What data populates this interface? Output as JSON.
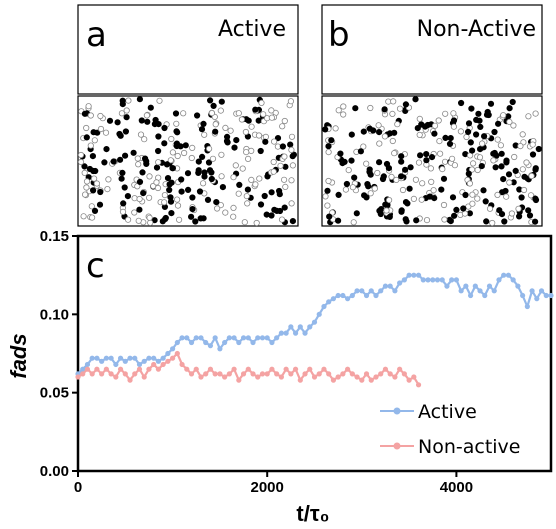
{
  "panels": {
    "a": {
      "letter": "a",
      "title": "Active"
    },
    "b": {
      "letter": "b",
      "title": "Non-Active"
    }
  },
  "chart_data": {
    "type": "line",
    "panel_letter": "c",
    "xlabel": "t/τ₀",
    "ylabel": "fads",
    "xlim": [
      0,
      5000
    ],
    "ylim": [
      0,
      0.15
    ],
    "x_ticks": [
      0,
      2000,
      4000
    ],
    "y_ticks": [
      0.0,
      0.05,
      0.1,
      0.15
    ],
    "x_tick_labels": [
      "0",
      "2000",
      "4000"
    ],
    "y_tick_labels": [
      "0.00",
      "0.05",
      "0.10",
      "0.15"
    ],
    "grid": false,
    "legend": "bottom-right",
    "series": [
      {
        "name": "Active",
        "color": "#93b8ea",
        "x": [
          0,
          50,
          100,
          150,
          200,
          250,
          300,
          350,
          400,
          450,
          500,
          550,
          600,
          650,
          700,
          750,
          800,
          850,
          900,
          950,
          1000,
          1050,
          1100,
          1150,
          1200,
          1250,
          1300,
          1350,
          1400,
          1450,
          1500,
          1550,
          1600,
          1650,
          1700,
          1750,
          1800,
          1850,
          1900,
          1950,
          2000,
          2050,
          2100,
          2150,
          2200,
          2250,
          2300,
          2350,
          2400,
          2450,
          2500,
          2550,
          2600,
          2650,
          2700,
          2750,
          2800,
          2850,
          2900,
          2950,
          3000,
          3050,
          3100,
          3150,
          3200,
          3250,
          3300,
          3350,
          3400,
          3450,
          3500,
          3550,
          3600,
          3650,
          3700,
          3750,
          3800,
          3850,
          3900,
          3950,
          4000,
          4050,
          4100,
          4150,
          4200,
          4250,
          4300,
          4350,
          4400,
          4450,
          4500,
          4550,
          4600,
          4650,
          4700,
          4750,
          4800,
          4850,
          4900,
          4950,
          5000
        ],
        "y": [
          0.062,
          0.065,
          0.068,
          0.072,
          0.072,
          0.07,
          0.072,
          0.072,
          0.068,
          0.072,
          0.07,
          0.072,
          0.072,
          0.068,
          0.07,
          0.072,
          0.072,
          0.07,
          0.072,
          0.075,
          0.078,
          0.082,
          0.085,
          0.085,
          0.082,
          0.085,
          0.085,
          0.082,
          0.08,
          0.085,
          0.078,
          0.082,
          0.085,
          0.085,
          0.082,
          0.085,
          0.085,
          0.082,
          0.085,
          0.085,
          0.085,
          0.082,
          0.085,
          0.088,
          0.088,
          0.092,
          0.088,
          0.092,
          0.088,
          0.092,
          0.095,
          0.1,
          0.105,
          0.108,
          0.11,
          0.112,
          0.112,
          0.11,
          0.112,
          0.115,
          0.115,
          0.112,
          0.115,
          0.112,
          0.115,
          0.118,
          0.118,
          0.115,
          0.12,
          0.122,
          0.125,
          0.125,
          0.125,
          0.122,
          0.122,
          0.122,
          0.122,
          0.122,
          0.118,
          0.122,
          0.122,
          0.115,
          0.118,
          0.112,
          0.118,
          0.115,
          0.112,
          0.118,
          0.115,
          0.122,
          0.125,
          0.125,
          0.122,
          0.118,
          0.112,
          0.105,
          0.115,
          0.11,
          0.115,
          0.112,
          0.112
        ]
      },
      {
        "name": "Non-active",
        "color": "#f4a3a3",
        "x": [
          0,
          50,
          100,
          150,
          200,
          250,
          300,
          350,
          400,
          450,
          500,
          550,
          600,
          650,
          700,
          750,
          800,
          850,
          900,
          950,
          1000,
          1050,
          1100,
          1150,
          1200,
          1250,
          1300,
          1350,
          1400,
          1450,
          1500,
          1550,
          1600,
          1650,
          1700,
          1750,
          1800,
          1850,
          1900,
          1950,
          2000,
          2050,
          2100,
          2150,
          2200,
          2250,
          2300,
          2350,
          2400,
          2450,
          2500,
          2550,
          2600,
          2650,
          2700,
          2750,
          2800,
          2850,
          2900,
          2950,
          3000,
          3050,
          3100,
          3150,
          3200,
          3250,
          3300,
          3350,
          3400,
          3450,
          3500,
          3550,
          3600
        ],
        "y": [
          0.06,
          0.062,
          0.065,
          0.062,
          0.065,
          0.062,
          0.065,
          0.062,
          0.06,
          0.065,
          0.062,
          0.058,
          0.062,
          0.065,
          0.06,
          0.065,
          0.068,
          0.065,
          0.068,
          0.07,
          0.072,
          0.075,
          0.068,
          0.065,
          0.062,
          0.065,
          0.06,
          0.062,
          0.065,
          0.062,
          0.062,
          0.06,
          0.062,
          0.065,
          0.058,
          0.062,
          0.065,
          0.062,
          0.06,
          0.062,
          0.062,
          0.065,
          0.062,
          0.06,
          0.065,
          0.062,
          0.065,
          0.058,
          0.062,
          0.065,
          0.06,
          0.062,
          0.065,
          0.062,
          0.058,
          0.06,
          0.062,
          0.065,
          0.062,
          0.06,
          0.058,
          0.062,
          0.058,
          0.06,
          0.062,
          0.065,
          0.062,
          0.06,
          0.065,
          0.062,
          0.058,
          0.06,
          0.055
        ]
      }
    ]
  }
}
